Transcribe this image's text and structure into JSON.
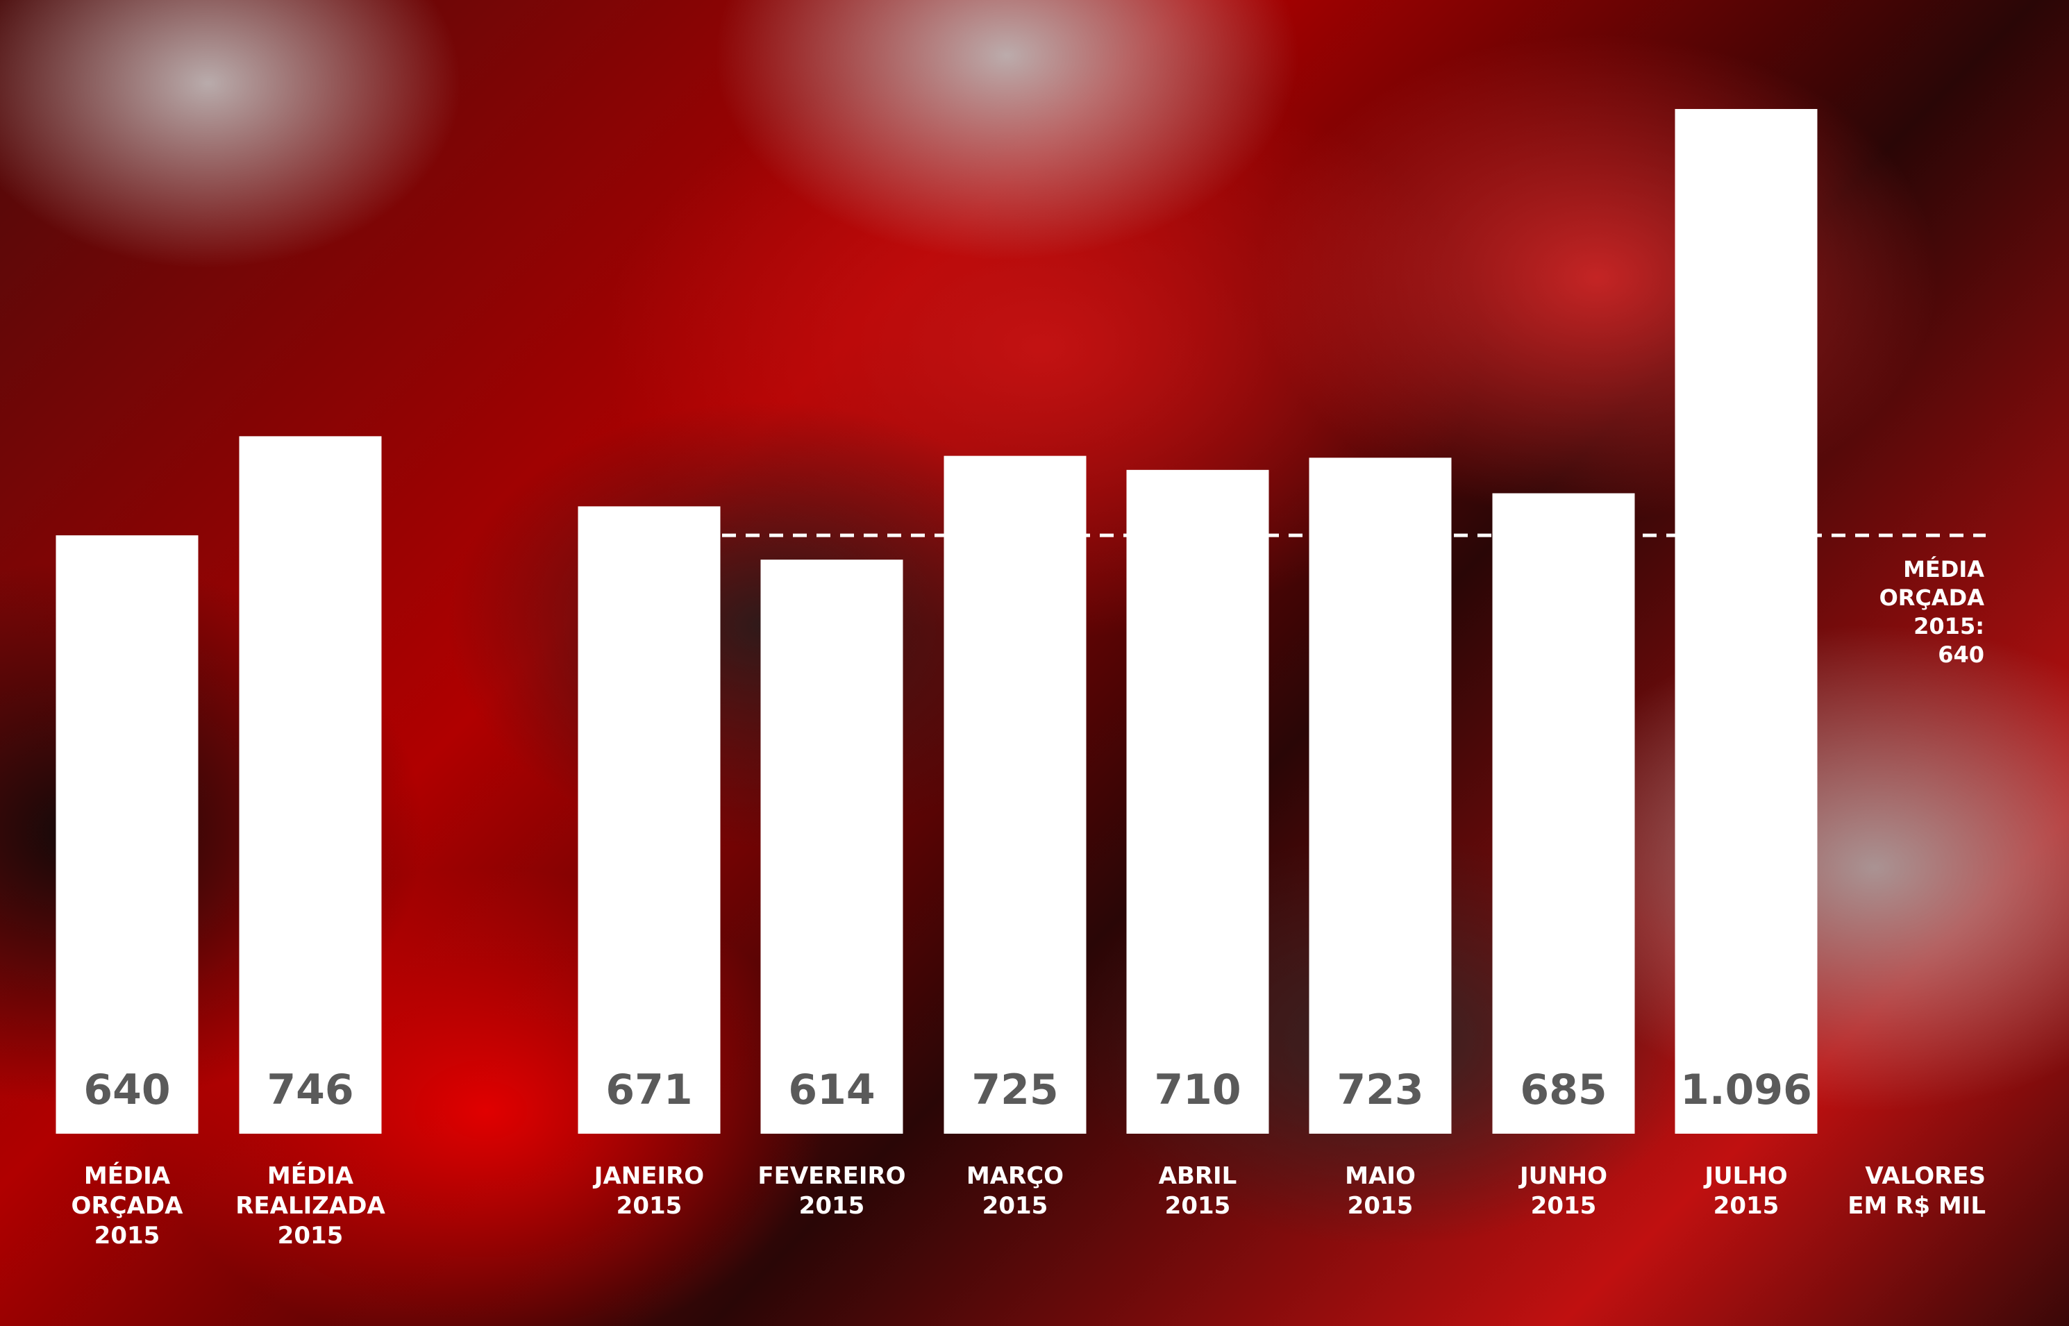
{
  "chart_data": {
    "type": "bar",
    "categories": [
      [
        "MÉDIA",
        "ORÇADA",
        "2015"
      ],
      [
        "MÉDIA",
        "REALIZADA",
        "2015"
      ],
      [
        "JANEIRO",
        "2015"
      ],
      [
        "FEVEREIRO",
        "2015"
      ],
      [
        "MARÇO",
        "2015"
      ],
      [
        "ABRIL",
        "2015"
      ],
      [
        "MAIO",
        "2015"
      ],
      [
        "JUNHO",
        "2015"
      ],
      [
        "JULHO",
        "2015"
      ]
    ],
    "values": [
      640,
      746,
      671,
      614,
      725,
      710,
      723,
      685,
      1096
    ],
    "value_labels": [
      "640",
      "746",
      "671",
      "614",
      "725",
      "710",
      "723",
      "685",
      "1.096"
    ],
    "reference_line": {
      "value": 640,
      "label_lines": [
        "MÉDIA",
        "ORÇADA",
        "2015:",
        "640"
      ]
    },
    "units_note": [
      "VALORES",
      "EM R$ MIL"
    ],
    "ylim": [
      0,
      1096
    ],
    "grid": false,
    "colors": {
      "bar": "#ffffff",
      "value_text": "#5a5a5a",
      "label_text": "#ffffff",
      "reference_line": "#ffffff"
    }
  }
}
